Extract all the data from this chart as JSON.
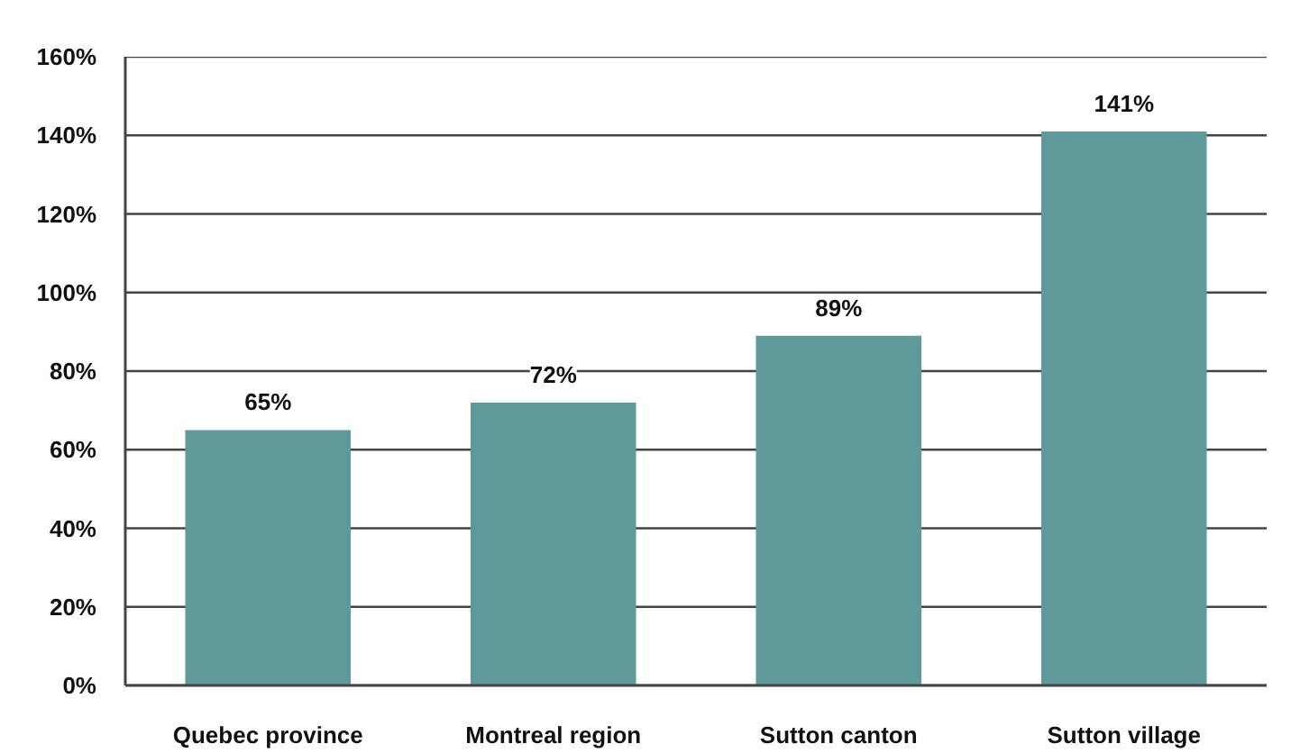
{
  "chart_data": {
    "type": "bar",
    "categories": [
      "Quebec province",
      "Montreal region",
      "Sutton canton",
      "Sutton village"
    ],
    "values": [
      65,
      72,
      89,
      141
    ],
    "value_labels": [
      "65%",
      "72%",
      "89%",
      "141%"
    ],
    "color": "#5f9999",
    "ylim": [
      0,
      160
    ],
    "yticks": [
      {
        "value": 0,
        "label": "0%"
      },
      {
        "value": 20,
        "label": "20%"
      },
      {
        "value": 40,
        "label": "40%"
      },
      {
        "value": 60,
        "label": "60%"
      },
      {
        "value": 80,
        "label": "80%"
      },
      {
        "value": 100,
        "label": "100%"
      },
      {
        "value": 120,
        "label": "120%"
      },
      {
        "value": 140,
        "label": "140%"
      },
      {
        "value": 160,
        "label": "160%"
      }
    ],
    "grid": "y"
  }
}
